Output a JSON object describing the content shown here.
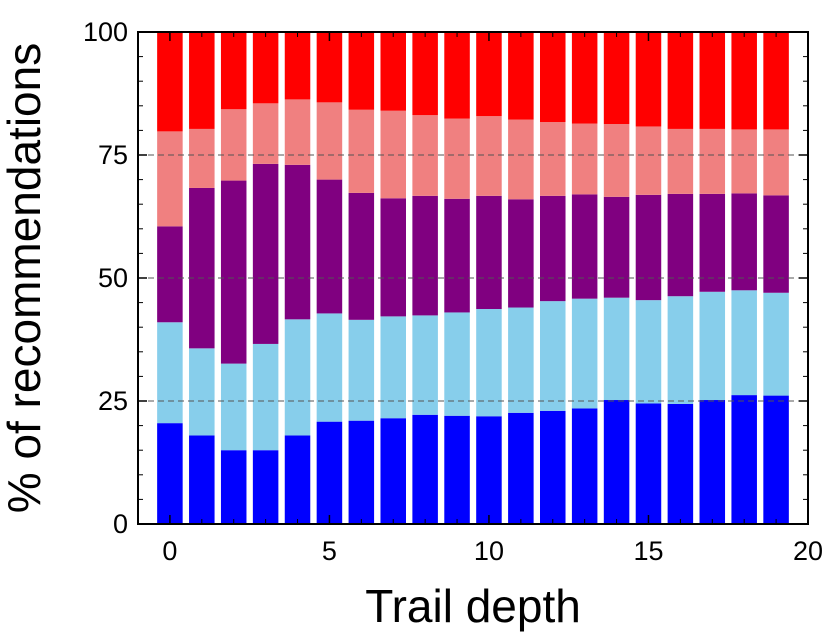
{
  "chart_data": {
    "type": "bar",
    "stacked": true,
    "xlabel": "Trail depth",
    "ylabel": "% of recommendations",
    "xlim": [
      -1,
      20
    ],
    "ylim": [
      0,
      100
    ],
    "xticks": [
      0,
      5,
      10,
      15,
      20
    ],
    "yticks": [
      0,
      25,
      50,
      75,
      100
    ],
    "grid": "y-dashed",
    "x": [
      0,
      1,
      2,
      3,
      4,
      5,
      6,
      7,
      8,
      9,
      10,
      11,
      12,
      13,
      14,
      15,
      16,
      17,
      18,
      19
    ],
    "series": [
      {
        "color": "#0000ff",
        "values": [
          20.5,
          18.0,
          15.0,
          15.0,
          18.0,
          20.8,
          21.0,
          21.5,
          22.2,
          22.0,
          21.9,
          22.6,
          23.0,
          23.5,
          25.2,
          24.5,
          24.4,
          25.2,
          26.2,
          26.1
        ]
      },
      {
        "color": "#87ceeb",
        "values": [
          20.5,
          17.7,
          17.6,
          21.6,
          23.6,
          22.0,
          20.5,
          20.7,
          20.2,
          21.0,
          21.8,
          21.4,
          22.3,
          22.3,
          20.8,
          21.0,
          21.9,
          22.0,
          21.3,
          20.9
        ]
      },
      {
        "color": "#800080",
        "values": [
          19.5,
          32.6,
          37.2,
          36.6,
          31.4,
          27.2,
          25.8,
          24.0,
          24.3,
          23.1,
          23.0,
          22.0,
          21.4,
          21.2,
          20.5,
          21.4,
          20.8,
          19.9,
          19.7,
          19.8
        ]
      },
      {
        "color": "#f08080",
        "values": [
          19.3,
          12.0,
          14.5,
          12.3,
          13.3,
          15.7,
          16.9,
          17.8,
          16.4,
          16.3,
          16.2,
          16.2,
          15.0,
          14.4,
          14.8,
          13.9,
          13.2,
          13.2,
          13.0,
          13.4
        ]
      },
      {
        "color": "#ff0000",
        "values": [
          20.2,
          19.7,
          15.7,
          14.5,
          13.7,
          14.3,
          15.8,
          16.0,
          16.9,
          17.6,
          17.1,
          17.8,
          18.3,
          18.6,
          18.7,
          19.2,
          19.7,
          19.7,
          19.8,
          19.8
        ]
      }
    ]
  }
}
